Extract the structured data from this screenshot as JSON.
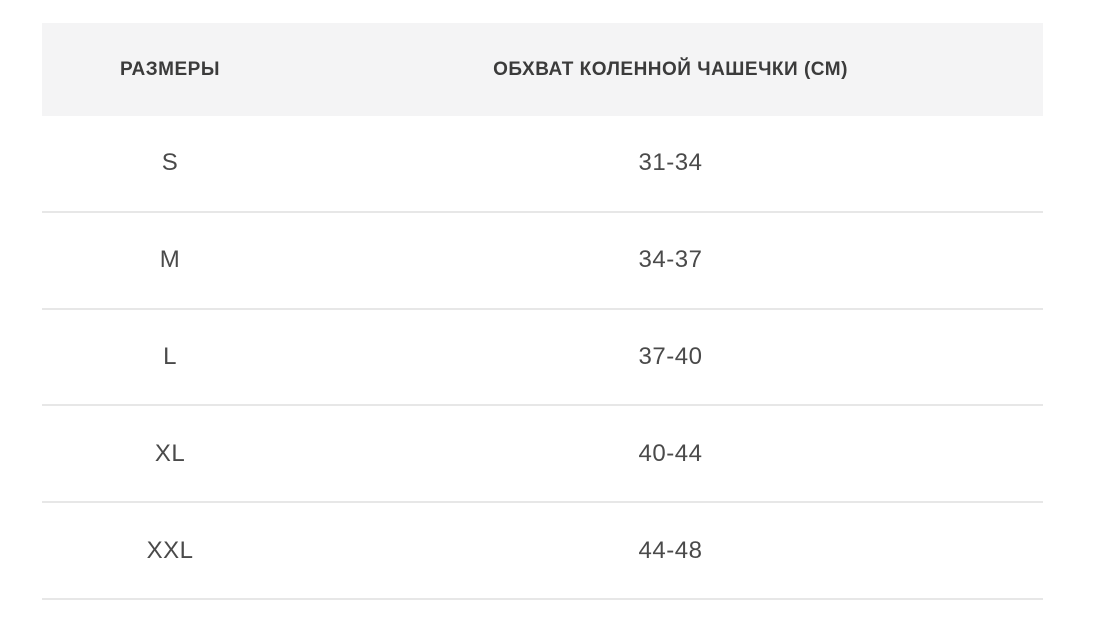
{
  "table": {
    "columns": [
      {
        "label": "РАЗМЕРЫ"
      },
      {
        "label": "ОБХВАТ КОЛЕННОЙ ЧАШЕЧКИ (СМ)"
      }
    ],
    "rows": [
      {
        "size": "S",
        "range": "31-34"
      },
      {
        "size": "M",
        "range": "34-37"
      },
      {
        "size": "L",
        "range": "37-40"
      },
      {
        "size": "XL",
        "range": "40-44"
      },
      {
        "size": "XXL",
        "range": "44-48"
      }
    ]
  },
  "colors": {
    "page_bg": "#ffffff",
    "header_bg": "#f4f4f5",
    "header_text": "#3b3b3b",
    "body_text": "#4a4a4a",
    "divider": "#e7e7e7"
  }
}
